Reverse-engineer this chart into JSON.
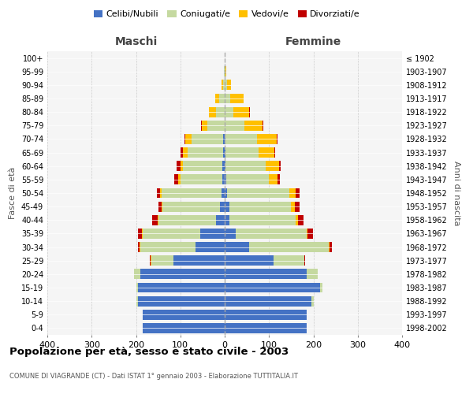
{
  "age_groups": [
    "0-4",
    "5-9",
    "10-14",
    "15-19",
    "20-24",
    "25-29",
    "30-34",
    "35-39",
    "40-44",
    "45-49",
    "50-54",
    "55-59",
    "60-64",
    "65-69",
    "70-74",
    "75-79",
    "80-84",
    "85-89",
    "90-94",
    "95-99",
    "100+"
  ],
  "birth_years": [
    "1998-2002",
    "1993-1997",
    "1988-1992",
    "1983-1987",
    "1978-1982",
    "1973-1977",
    "1968-1972",
    "1963-1967",
    "1958-1962",
    "1953-1957",
    "1948-1952",
    "1943-1947",
    "1938-1942",
    "1933-1937",
    "1928-1932",
    "1923-1927",
    "1918-1922",
    "1913-1917",
    "1908-1912",
    "1903-1907",
    "≤ 1902"
  ],
  "male": {
    "celibi": [
      185,
      185,
      195,
      195,
      190,
      115,
      65,
      55,
      20,
      10,
      8,
      5,
      5,
      4,
      4,
      0,
      0,
      0,
      0,
      0,
      0
    ],
    "coniugati": [
      0,
      0,
      5,
      5,
      15,
      50,
      125,
      130,
      130,
      130,
      135,
      95,
      90,
      80,
      70,
      40,
      20,
      12,
      4,
      2,
      0
    ],
    "vedovi": [
      0,
      0,
      0,
      0,
      0,
      2,
      2,
      2,
      2,
      2,
      2,
      5,
      5,
      10,
      15,
      12,
      15,
      10,
      3,
      0,
      0
    ],
    "divorziati": [
      0,
      0,
      0,
      0,
      0,
      2,
      4,
      8,
      12,
      8,
      8,
      8,
      8,
      5,
      2,
      2,
      0,
      0,
      0,
      0,
      0
    ]
  },
  "female": {
    "nubili": [
      185,
      185,
      195,
      215,
      185,
      110,
      55,
      25,
      10,
      10,
      5,
      4,
      2,
      2,
      2,
      0,
      0,
      0,
      0,
      0,
      0
    ],
    "coniugate": [
      0,
      0,
      5,
      5,
      25,
      70,
      180,
      160,
      150,
      140,
      140,
      95,
      90,
      75,
      70,
      45,
      20,
      12,
      5,
      2,
      0
    ],
    "vedove": [
      0,
      0,
      0,
      0,
      0,
      0,
      2,
      2,
      5,
      8,
      15,
      20,
      30,
      35,
      45,
      40,
      35,
      30,
      10,
      2,
      0
    ],
    "divorziate": [
      0,
      0,
      0,
      0,
      0,
      2,
      5,
      12,
      12,
      10,
      8,
      5,
      5,
      2,
      2,
      2,
      2,
      0,
      0,
      0,
      0
    ]
  },
  "color_celibi": "#4472c4",
  "color_coniugati": "#c5d9a0",
  "color_vedovi": "#ffc000",
  "color_divorziati": "#c00000",
  "xlim": 400,
  "title": "Popolazione per età, sesso e stato civile - 2003",
  "subtitle": "COMUNE DI VIAGRANDE (CT) - Dati ISTAT 1° gennaio 2003 - Elaborazione TUTTITALIA.IT",
  "ylabel_left": "Fasce di età",
  "ylabel_right": "Anni di nascita",
  "xlabel_left": "Maschi",
  "xlabel_right": "Femmine"
}
